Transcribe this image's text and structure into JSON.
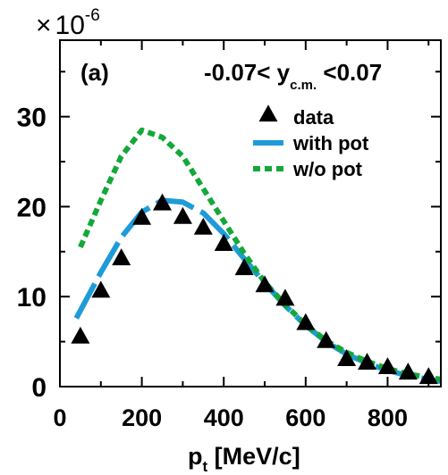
{
  "chart_data": {
    "type": "scatter",
    "multiplier": {
      "symbol": "×",
      "base": "10",
      "exponent": "-6"
    },
    "panel_label": "(a)",
    "rapidity_cut": {
      "left": "-0.07< y",
      "subscript": "c.m.",
      "right": " <0.07"
    },
    "xlabel": {
      "main": "p",
      "subscript": "t",
      "unit": " [MeV/c]"
    },
    "ylabel": "",
    "xlim": [
      0,
      930
    ],
    "ylim": [
      0,
      38.5
    ],
    "xticks": [
      0,
      200,
      400,
      600,
      800
    ],
    "xticks_minor": [
      100,
      300,
      500,
      700,
      900
    ],
    "yticks": [
      0,
      10,
      20,
      30
    ],
    "yticks_minor": [
      5,
      15,
      25,
      35
    ],
    "grid": false,
    "legend_position": "top-right",
    "series": [
      {
        "name": "data",
        "kind": "markers",
        "marker": "triangle",
        "color": "#000000",
        "x": [
          50,
          100,
          150,
          200,
          250,
          300,
          350,
          400,
          450,
          500,
          550,
          600,
          650,
          700,
          750,
          800,
          850,
          900
        ],
        "y": [
          5.5,
          10.6,
          14.2,
          18.7,
          20.3,
          18.8,
          17.6,
          15.8,
          13.1,
          11.2,
          9.7,
          7.0,
          5.0,
          3.0,
          2.6,
          2.1,
          1.5,
          1.0
        ]
      },
      {
        "name": "with pot",
        "kind": "line",
        "style": "long-dash",
        "color": "#1e9bd8",
        "x": [
          40,
          100,
          150,
          200,
          250,
          300,
          350,
          400,
          450,
          500,
          550,
          600,
          650,
          700,
          750,
          800,
          850,
          900,
          930
        ],
        "y": [
          7.6,
          12.7,
          16.6,
          19.4,
          20.7,
          20.5,
          19.3,
          17.0,
          14.2,
          11.5,
          9.0,
          6.8,
          5.0,
          3.6,
          2.6,
          1.8,
          1.2,
          0.8,
          0.6
        ]
      },
      {
        "name": "w/o pot",
        "kind": "line",
        "style": "dotted",
        "color": "#13a83a",
        "x": [
          50,
          100,
          150,
          200,
          250,
          300,
          350,
          400,
          450,
          500,
          550,
          600,
          650,
          700,
          750,
          800,
          850,
          900,
          930
        ],
        "y": [
          15.5,
          20.7,
          25.6,
          28.5,
          27.7,
          25.6,
          22.0,
          18.4,
          14.8,
          11.6,
          9.1,
          6.9,
          5.1,
          3.8,
          2.8,
          2.0,
          1.4,
          1.0,
          0.8
        ]
      }
    ]
  }
}
